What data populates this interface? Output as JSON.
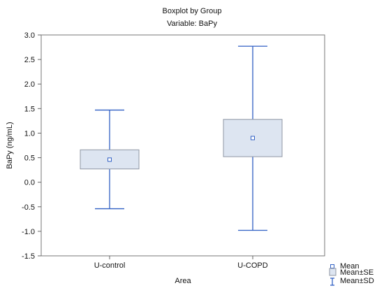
{
  "chart_data": {
    "type": "boxplot",
    "title": "Boxplot by Group",
    "subtitle": "Variable: BaPy",
    "xlabel": "Area",
    "ylabel": "BaPy (ng/mL)",
    "ylim": [
      -1.5,
      3.0
    ],
    "yticks": [
      "3.0",
      "2.5",
      "2.0",
      "1.5",
      "1.0",
      "0.5",
      "0.0",
      "-0.5",
      "-1.0",
      "-1.5"
    ],
    "ytick_values": [
      3.0,
      2.5,
      2.0,
      1.5,
      1.0,
      0.5,
      0.0,
      -0.5,
      -1.0,
      -1.5
    ],
    "categories": [
      "U-control",
      "U-COPD"
    ],
    "mean": [
      0.46,
      0.9
    ],
    "se_low": [
      0.27,
      0.52
    ],
    "se_high": [
      0.66,
      1.28
    ],
    "sd_low": [
      -0.54,
      -0.98
    ],
    "sd_high": [
      1.47,
      2.77
    ],
    "grid": false,
    "legend_position": "bottom-right",
    "legend": [
      "Mean",
      "Mean±SE",
      "Mean±SD"
    ],
    "colors": {
      "box_fill": "#dde5f1",
      "box_stroke": "#8f96a3",
      "line": "#2f5fc4",
      "mean_marker": "#2f5fc4"
    }
  }
}
